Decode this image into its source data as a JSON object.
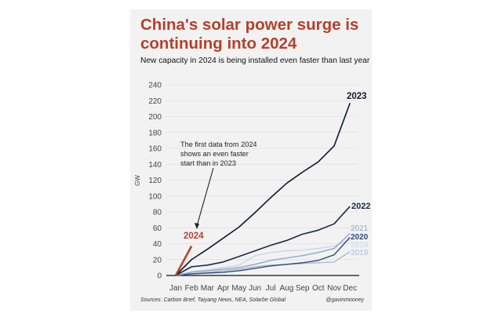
{
  "header": {
    "title": "China's solar power surge is continuing into 2024",
    "subtitle": "New capacity in 2024 is being installed even faster than last year"
  },
  "footer": {
    "sources": "Sources: Carbon Brief, Taiyang News, NEA, Solarbe Global",
    "handle": "@gavinmooney"
  },
  "chart_data": {
    "type": "line",
    "title": "China's solar power surge is continuing into 2024",
    "subtitle": "New capacity in 2024 is being installed even faster than last year",
    "xlabel": "",
    "ylabel": "GW",
    "ylim": [
      0,
      240
    ],
    "yticks": [
      0,
      20,
      40,
      60,
      80,
      100,
      120,
      140,
      160,
      180,
      200,
      220,
      240
    ],
    "grid": true,
    "categories": [
      "Jan",
      "Feb",
      "Mar",
      "Apr",
      "May",
      "Jun",
      "Jul",
      "Aug",
      "Sep",
      "Oct",
      "Nov",
      "Dec"
    ],
    "annotation": "The first data from 2024 shows an even faster start than in 2023",
    "annotation_lines": [
      "The first data from 2024",
      "shows an even faster",
      "start than in 2023"
    ],
    "series": [
      {
        "name": "2019",
        "color": "#aabbd6",
        "values": [
          0,
          2,
          4,
          6,
          8,
          11,
          13,
          14,
          15,
          16,
          17,
          30
        ]
      },
      {
        "name": "2018",
        "color": "#c9d6e8",
        "values": [
          0,
          5,
          7,
          10,
          13,
          25,
          29,
          31,
          32,
          34,
          37,
          45
        ]
      },
      {
        "name": "2020",
        "color": "#2f4a78",
        "values": [
          0,
          2,
          3,
          4,
          6,
          9,
          12,
          14,
          16,
          19,
          26,
          48
        ]
      },
      {
        "name": "2021",
        "color": "#8fa7c8",
        "values": [
          0,
          4,
          6,
          8,
          10,
          14,
          19,
          22,
          25,
          29,
          34,
          53
        ]
      },
      {
        "name": "2022",
        "color": "#1c2a44",
        "values": [
          0,
          11,
          13,
          17,
          24,
          31,
          38,
          44,
          52,
          57,
          65,
          87
        ]
      },
      {
        "name": "2023",
        "color": "#111a30",
        "values": [
          0,
          20,
          33,
          47,
          61,
          79,
          98,
          116,
          130,
          143,
          163,
          217
        ]
      },
      {
        "name": "2024",
        "color": "#b5452f",
        "values": [
          0,
          37
        ]
      }
    ]
  }
}
